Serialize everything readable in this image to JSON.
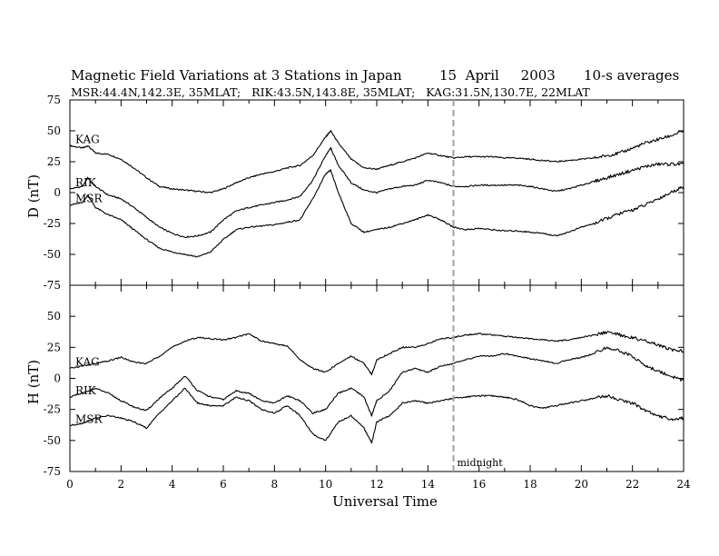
{
  "chart_data": {
    "type": "line",
    "title": "Magnetic Field Variations at 3 Stations in Japan",
    "date": "15  April     2003",
    "averaging": "10-s averages",
    "subtitle": "MSR:44.4N,142.3E, 35MLAT;   RIK:43.5N,143.8E, 35MLAT;   KAG:31.5N,130.7E, 22MLAT",
    "xlabel": "Universal Time",
    "xlim": [
      0,
      24
    ],
    "xticks": [
      "0",
      "2",
      "4",
      "6",
      "8",
      "10",
      "12",
      "14",
      "16",
      "18",
      "20",
      "22",
      "24"
    ],
    "marker": {
      "x": 15,
      "label": "midnight",
      "color": "#a0a0a0"
    },
    "panels": [
      {
        "ylabel": "D (nT)",
        "ylim": [
          -75,
          75
        ],
        "yticks": [
          "75",
          "50",
          "25",
          "0",
          "-25",
          "-50",
          "-75"
        ],
        "x": [
          0,
          0.5,
          0.7,
          1,
          1.5,
          2,
          2.5,
          3,
          3.5,
          4,
          4.5,
          5,
          5.5,
          6,
          6.5,
          7,
          7.5,
          8,
          8.5,
          9,
          9.5,
          10,
          10.2,
          10.5,
          11,
          11.5,
          12,
          12.5,
          13,
          13.5,
          14,
          14.5,
          15,
          15.5,
          16,
          16.5,
          17,
          17.5,
          18,
          18.5,
          19,
          19.5,
          20,
          20.5,
          21,
          21.5,
          22,
          22.5,
          23,
          23.5,
          24
        ],
        "series": [
          {
            "name": "KAG",
            "values": [
              38,
              36,
              38,
              32,
              31,
              27,
              20,
              12,
              5,
              3,
              2,
              1,
              0,
              3,
              8,
              12,
              15,
              17,
              20,
              22,
              30,
              45,
              50,
              40,
              27,
              20,
              19,
              22,
              25,
              28,
              32,
              30,
              28,
              29,
              29,
              29,
              28,
              28,
              27,
              26,
              25,
              26,
              27,
              28,
              30,
              32,
              36,
              40,
              43,
              46,
              50
            ]
          },
          {
            "name": "RIK",
            "values": [
              3,
              5,
              12,
              5,
              -2,
              -5,
              -12,
              -20,
              -28,
              -33,
              -36,
              -35,
              -32,
              -22,
              -15,
              -12,
              -10,
              -8,
              -6,
              -3,
              10,
              30,
              36,
              22,
              8,
              2,
              0,
              3,
              5,
              6,
              10,
              8,
              5,
              5,
              6,
              6,
              6,
              6,
              5,
              3,
              1,
              3,
              6,
              9,
              12,
              15,
              18,
              21,
              23,
              23,
              23
            ]
          },
          {
            "name": "MSR",
            "values": [
              -10,
              -8,
              -2,
              -12,
              -18,
              -22,
              -30,
              -38,
              -45,
              -48,
              -50,
              -52,
              -48,
              -38,
              -30,
              -28,
              -27,
              -26,
              -24,
              -22,
              -5,
              15,
              18,
              0,
              -25,
              -32,
              -30,
              -28,
              -25,
              -22,
              -18,
              -22,
              -28,
              -30,
              -29,
              -30,
              -31,
              -31,
              -32,
              -33,
              -35,
              -32,
              -28,
              -25,
              -21,
              -17,
              -14,
              -10,
              -5,
              0,
              5
            ]
          }
        ]
      },
      {
        "ylabel": "H (nT)",
        "ylim": [
          -75,
          75
        ],
        "yticks": [
          "75",
          "50",
          "25",
          "0",
          "-25",
          "-50",
          "-75"
        ],
        "x": [
          0,
          0.5,
          1,
          1.5,
          2,
          2.5,
          3,
          3.5,
          4,
          4.5,
          5,
          5.5,
          6,
          6.5,
          7,
          7.5,
          8,
          8.5,
          9,
          9.5,
          10,
          10.5,
          11,
          11.5,
          11.8,
          12,
          12.5,
          13,
          13.5,
          14,
          14.5,
          15,
          15.5,
          16,
          16.5,
          17,
          17.5,
          18,
          18.5,
          19,
          19.5,
          20,
          20.5,
          21,
          21.5,
          22,
          22.5,
          23,
          23.5,
          24
        ],
        "series": [
          {
            "name": "KAG",
            "values": [
              8,
              10,
              12,
              14,
              17,
              13,
              12,
              18,
              25,
              30,
              33,
              32,
              31,
              33,
              36,
              30,
              28,
              26,
              15,
              8,
              5,
              12,
              18,
              12,
              3,
              15,
              20,
              25,
              25,
              28,
              32,
              33,
              35,
              36,
              35,
              34,
              33,
              32,
              31,
              30,
              31,
              33,
              35,
              37,
              35,
              33,
              30,
              27,
              23,
              22
            ]
          },
          {
            "name": "RIK",
            "values": [
              -15,
              -12,
              -8,
              -12,
              -18,
              -23,
              -26,
              -16,
              -8,
              2,
              -10,
              -15,
              -17,
              -10,
              -12,
              -18,
              -20,
              -14,
              -18,
              -28,
              -25,
              -12,
              -8,
              -15,
              -30,
              -18,
              -10,
              5,
              8,
              5,
              10,
              12,
              15,
              18,
              18,
              20,
              18,
              16,
              14,
              12,
              15,
              17,
              20,
              25,
              22,
              18,
              10,
              6,
              2,
              -2
            ]
          },
          {
            "name": "MSR",
            "values": [
              -38,
              -36,
              -32,
              -30,
              -32,
              -35,
              -40,
              -28,
              -18,
              -8,
              -20,
              -22,
              -22,
              -15,
              -18,
              -25,
              -28,
              -22,
              -30,
              -45,
              -50,
              -35,
              -30,
              -40,
              -52,
              -35,
              -30,
              -20,
              -18,
              -20,
              -18,
              -16,
              -15,
              -14,
              -14,
              -15,
              -17,
              -22,
              -24,
              -22,
              -20,
              -18,
              -16,
              -14,
              -17,
              -20,
              -26,
              -30,
              -33,
              -32
            ]
          }
        ]
      }
    ]
  }
}
